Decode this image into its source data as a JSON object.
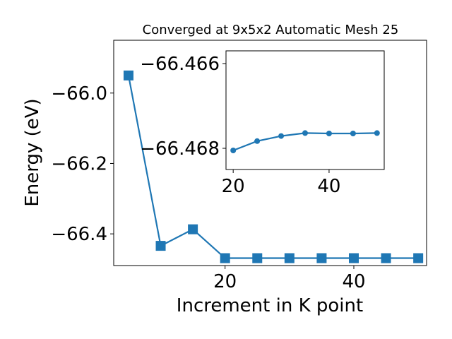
{
  "chart_data": [
    {
      "type": "line",
      "title": "Converged at 9x5x2 Automatic Mesh 25",
      "xlabel": "Increment in K point",
      "ylabel": "Energy (eV)",
      "marker": "square",
      "color": "#1f77b4",
      "xlim": [
        2.7,
        51.3
      ],
      "ylim": [
        -66.49,
        -65.85
      ],
      "xticks": [
        20,
        40
      ],
      "yticks": [
        -66.0,
        -66.2,
        -66.4
      ],
      "xtick_labels": [
        "20",
        "40"
      ],
      "ytick_labels": [
        "−66.0",
        "−66.2",
        "−66.4"
      ],
      "x": [
        5,
        10,
        15,
        20,
        25,
        30,
        35,
        40,
        45,
        50
      ],
      "y": [
        -65.95,
        -66.434,
        -66.387,
        -66.469,
        -66.469,
        -66.469,
        -66.469,
        -66.469,
        -66.469,
        -66.469
      ]
    },
    {
      "type": "line",
      "inset": true,
      "marker": "circle",
      "color": "#1f77b4",
      "xlim": [
        18.5,
        51.5
      ],
      "ylim": [
        -66.4685,
        -66.4657
      ],
      "xticks": [
        20,
        40
      ],
      "yticks": [
        -66.468,
        -66.466
      ],
      "xtick_labels": [
        "20",
        "40"
      ],
      "ytick_labels": [
        "−66.468",
        "−66.466"
      ],
      "x": [
        20,
        25,
        30,
        35,
        40,
        45,
        50
      ],
      "y": [
        -66.46805,
        -66.46783,
        -66.46771,
        -66.46764,
        -66.46765,
        -66.46765,
        -66.46764
      ]
    }
  ]
}
